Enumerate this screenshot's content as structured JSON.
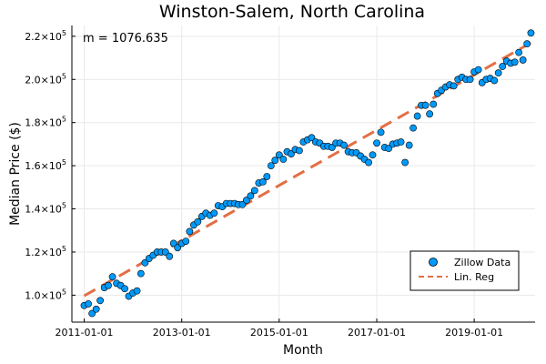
{
  "chart_data": {
    "type": "scatter",
    "title": "Winston-Salem, North Carolina",
    "xlabel": "Month",
    "ylabel": "Median Price ($)",
    "annotation": "m = 1076.635",
    "x_ticks": [
      "2011-01-01",
      "2013-01-01",
      "2015-01-01",
      "2017-01-01",
      "2019-01-01"
    ],
    "y_ticks": [
      {
        "value": 100000,
        "mantissa": "1.0×10",
        "exp": "5"
      },
      {
        "value": 120000,
        "mantissa": "1.2×10",
        "exp": "5"
      },
      {
        "value": 140000,
        "mantissa": "1.4×10",
        "exp": "5"
      },
      {
        "value": 160000,
        "mantissa": "1.6×10",
        "exp": "5"
      },
      {
        "value": 180000,
        "mantissa": "1.8×10",
        "exp": "5"
      },
      {
        "value": 200000,
        "mantissa": "2.0×10",
        "exp": "5"
      },
      {
        "value": 220000,
        "mantissa": "2.2×10",
        "exp": "5"
      }
    ],
    "xlim": [
      "2010-10-01",
      "2020-04-01"
    ],
    "ylim": [
      87500,
      225000
    ],
    "grid": true,
    "legend_position": "bottom-right",
    "series": [
      {
        "name": "Zillow Data",
        "kind": "scatter",
        "color": "#009AFA",
        "points": [
          [
            "2011-01-01",
            95200
          ],
          [
            "2011-02-01",
            96000
          ],
          [
            "2011-03-01",
            91500
          ],
          [
            "2011-04-01",
            93500
          ],
          [
            "2011-05-01",
            97500
          ],
          [
            "2011-06-01",
            103500
          ],
          [
            "2011-07-01",
            104500
          ],
          [
            "2011-08-01",
            108500
          ],
          [
            "2011-09-01",
            105500
          ],
          [
            "2011-10-01",
            104500
          ],
          [
            "2011-11-01",
            103000
          ],
          [
            "2011-12-01",
            99500
          ],
          [
            "2012-01-01",
            101000
          ],
          [
            "2012-02-01",
            102000
          ],
          [
            "2012-03-01",
            110000
          ],
          [
            "2012-04-01",
            115000
          ],
          [
            "2012-05-01",
            117000
          ],
          [
            "2012-06-01",
            118500
          ],
          [
            "2012-07-01",
            120000
          ],
          [
            "2012-08-01",
            120000
          ],
          [
            "2012-09-01",
            120000
          ],
          [
            "2012-10-01",
            118000
          ],
          [
            "2012-11-01",
            124000
          ],
          [
            "2012-12-01",
            122000
          ],
          [
            "2013-01-01",
            124000
          ],
          [
            "2013-02-01",
            125000
          ],
          [
            "2013-03-01",
            129500
          ],
          [
            "2013-04-01",
            132500
          ],
          [
            "2013-05-01",
            134000
          ],
          [
            "2013-06-01",
            136500
          ],
          [
            "2013-07-01",
            138000
          ],
          [
            "2013-08-01",
            137000
          ],
          [
            "2013-09-01",
            138000
          ],
          [
            "2013-10-01",
            141500
          ],
          [
            "2013-11-01",
            141000
          ],
          [
            "2013-12-01",
            142500
          ],
          [
            "2014-01-01",
            142500
          ],
          [
            "2014-02-01",
            142500
          ],
          [
            "2014-03-01",
            142000
          ],
          [
            "2014-04-01",
            142000
          ],
          [
            "2014-05-01",
            144000
          ],
          [
            "2014-06-01",
            146000
          ],
          [
            "2014-07-01",
            148500
          ],
          [
            "2014-08-01",
            152000
          ],
          [
            "2014-09-01",
            152500
          ],
          [
            "2014-10-01",
            155000
          ],
          [
            "2014-11-01",
            160000
          ],
          [
            "2014-12-01",
            162500
          ],
          [
            "2015-01-01",
            165000
          ],
          [
            "2015-02-01",
            163000
          ],
          [
            "2015-03-01",
            166500
          ],
          [
            "2015-04-01",
            165500
          ],
          [
            "2015-05-01",
            167500
          ],
          [
            "2015-06-01",
            167000
          ],
          [
            "2015-07-01",
            171000
          ],
          [
            "2015-08-01",
            172000
          ],
          [
            "2015-09-01",
            173000
          ],
          [
            "2015-10-01",
            171000
          ],
          [
            "2015-11-01",
            170500
          ],
          [
            "2015-12-01",
            169000
          ],
          [
            "2016-01-01",
            169000
          ],
          [
            "2016-02-01",
            168500
          ],
          [
            "2016-03-01",
            170500
          ],
          [
            "2016-04-01",
            170500
          ],
          [
            "2016-05-01",
            169500
          ],
          [
            "2016-06-01",
            166500
          ],
          [
            "2016-07-01",
            166000
          ],
          [
            "2016-08-01",
            166000
          ],
          [
            "2016-09-01",
            164500
          ],
          [
            "2016-10-01",
            163000
          ],
          [
            "2016-11-01",
            161500
          ],
          [
            "2016-12-01",
            165000
          ],
          [
            "2017-01-01",
            170500
          ],
          [
            "2017-02-01",
            175500
          ],
          [
            "2017-03-01",
            168500
          ],
          [
            "2017-04-01",
            168000
          ],
          [
            "2017-05-01",
            170000
          ],
          [
            "2017-06-01",
            170500
          ],
          [
            "2017-07-01",
            171000
          ],
          [
            "2017-08-01",
            161500
          ],
          [
            "2017-09-01",
            169500
          ],
          [
            "2017-10-01",
            177500
          ],
          [
            "2017-11-01",
            183000
          ],
          [
            "2017-12-01",
            188000
          ],
          [
            "2018-01-01",
            188000
          ],
          [
            "2018-02-01",
            184000
          ],
          [
            "2018-03-01",
            188500
          ],
          [
            "2018-04-01",
            193500
          ],
          [
            "2018-05-01",
            195000
          ],
          [
            "2018-06-01",
            196500
          ],
          [
            "2018-07-01",
            197500
          ],
          [
            "2018-08-01",
            197000
          ],
          [
            "2018-09-01",
            200000
          ],
          [
            "2018-10-01",
            201000
          ],
          [
            "2018-11-01",
            200000
          ],
          [
            "2018-12-01",
            200000
          ],
          [
            "2019-01-01",
            203500
          ],
          [
            "2019-02-01",
            204500
          ],
          [
            "2019-03-01",
            198500
          ],
          [
            "2019-04-01",
            200000
          ],
          [
            "2019-05-01",
            200500
          ],
          [
            "2019-06-01",
            199500
          ],
          [
            "2019-07-01",
            203000
          ],
          [
            "2019-08-01",
            206000
          ],
          [
            "2019-09-01",
            208500
          ],
          [
            "2019-10-01",
            207500
          ],
          [
            "2019-11-01",
            208000
          ],
          [
            "2019-12-01",
            212500
          ],
          [
            "2020-01-01",
            209000
          ],
          [
            "2020-02-01",
            216500
          ],
          [
            "2020-03-01",
            221500
          ]
        ]
      },
      {
        "name": "Lin. Reg",
        "kind": "line",
        "style": "dashed",
        "color": "#E26F46",
        "points": [
          [
            "2011-01-01",
            99700
          ],
          [
            "2020-03-01",
            217000
          ]
        ]
      }
    ]
  }
}
